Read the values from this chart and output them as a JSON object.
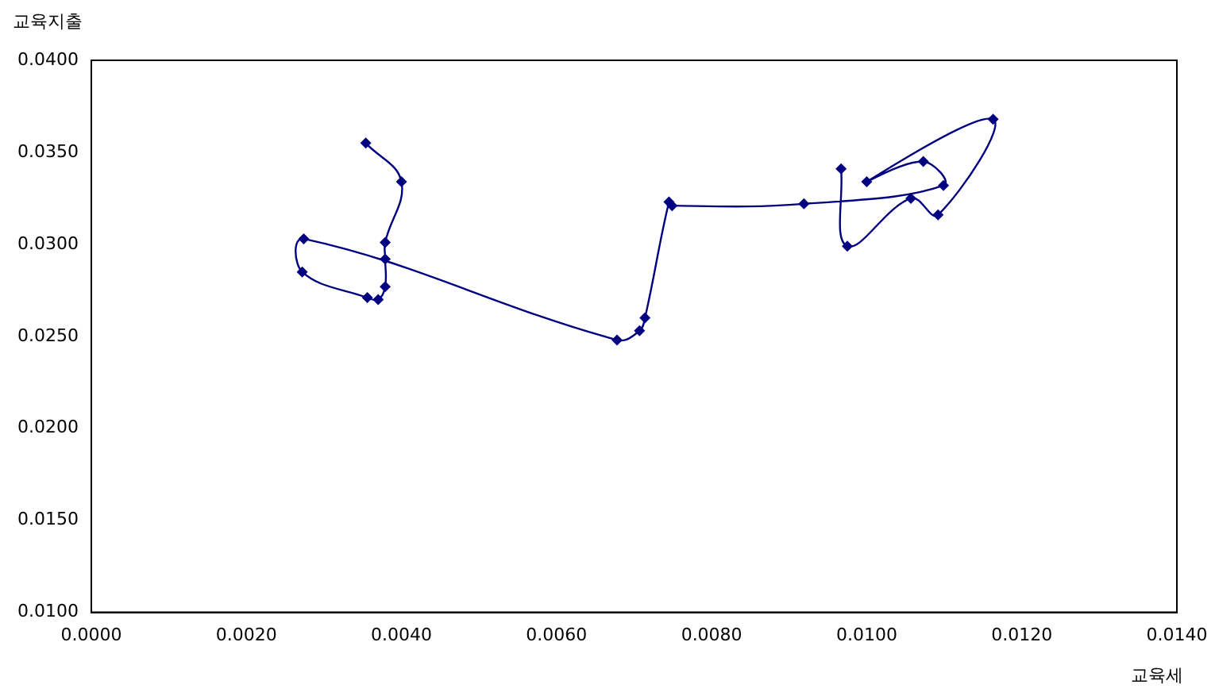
{
  "chart_data": {
    "type": "line",
    "xlabel": "교육세",
    "ylabel": "교육지출",
    "x": [
      0.00354,
      0.004,
      0.00379,
      0.00379,
      0.00379,
      0.0037,
      0.00356,
      0.00272,
      0.00274,
      0.00678,
      0.00707,
      0.00714,
      0.00745,
      0.00749,
      0.00919,
      0.01099,
      0.01073,
      0.01,
      0.01163,
      0.01092,
      0.01057,
      0.00975,
      0.00967
    ],
    "series": [
      {
        "color": "#000080",
        "values": [
          0.0355,
          0.0334,
          0.0301,
          0.0292,
          0.0277,
          0.027,
          0.0271,
          0.0285,
          0.0303,
          0.0248,
          0.0253,
          0.026,
          0.0323,
          0.0321,
          0.0322,
          0.0332,
          0.0345,
          0.0334,
          0.0368,
          0.0316,
          0.0325,
          0.0299,
          0.0341
        ]
      }
    ],
    "xlim": [
      0,
      0.014
    ],
    "xticks": [
      {
        "value": 0,
        "label": "0.0000"
      },
      {
        "value": 0.002,
        "label": "0.0020"
      },
      {
        "value": 0.004,
        "label": "0.0040"
      },
      {
        "value": 0.006,
        "label": "0.0060"
      },
      {
        "value": 0.008,
        "label": "0.0080"
      },
      {
        "value": 0.01,
        "label": "0.0100"
      },
      {
        "value": 0.012,
        "label": "0.0120"
      },
      {
        "value": 0.014,
        "label": "0.0140"
      }
    ],
    "ylim": [
      0.01,
      0.04
    ],
    "yticks": [
      {
        "value": 0.01,
        "label": "0.0100"
      },
      {
        "value": 0.015,
        "label": "0.0150"
      },
      {
        "value": 0.02,
        "label": "0.0200"
      },
      {
        "value": 0.025,
        "label": "0.0250"
      },
      {
        "value": 0.03,
        "label": "0.0300"
      },
      {
        "value": 0.035,
        "label": "0.0350"
      },
      {
        "value": 0.04,
        "label": "0.0400"
      }
    ],
    "grid": false,
    "legend": false,
    "marker": "diamond",
    "line_style": "solid"
  }
}
